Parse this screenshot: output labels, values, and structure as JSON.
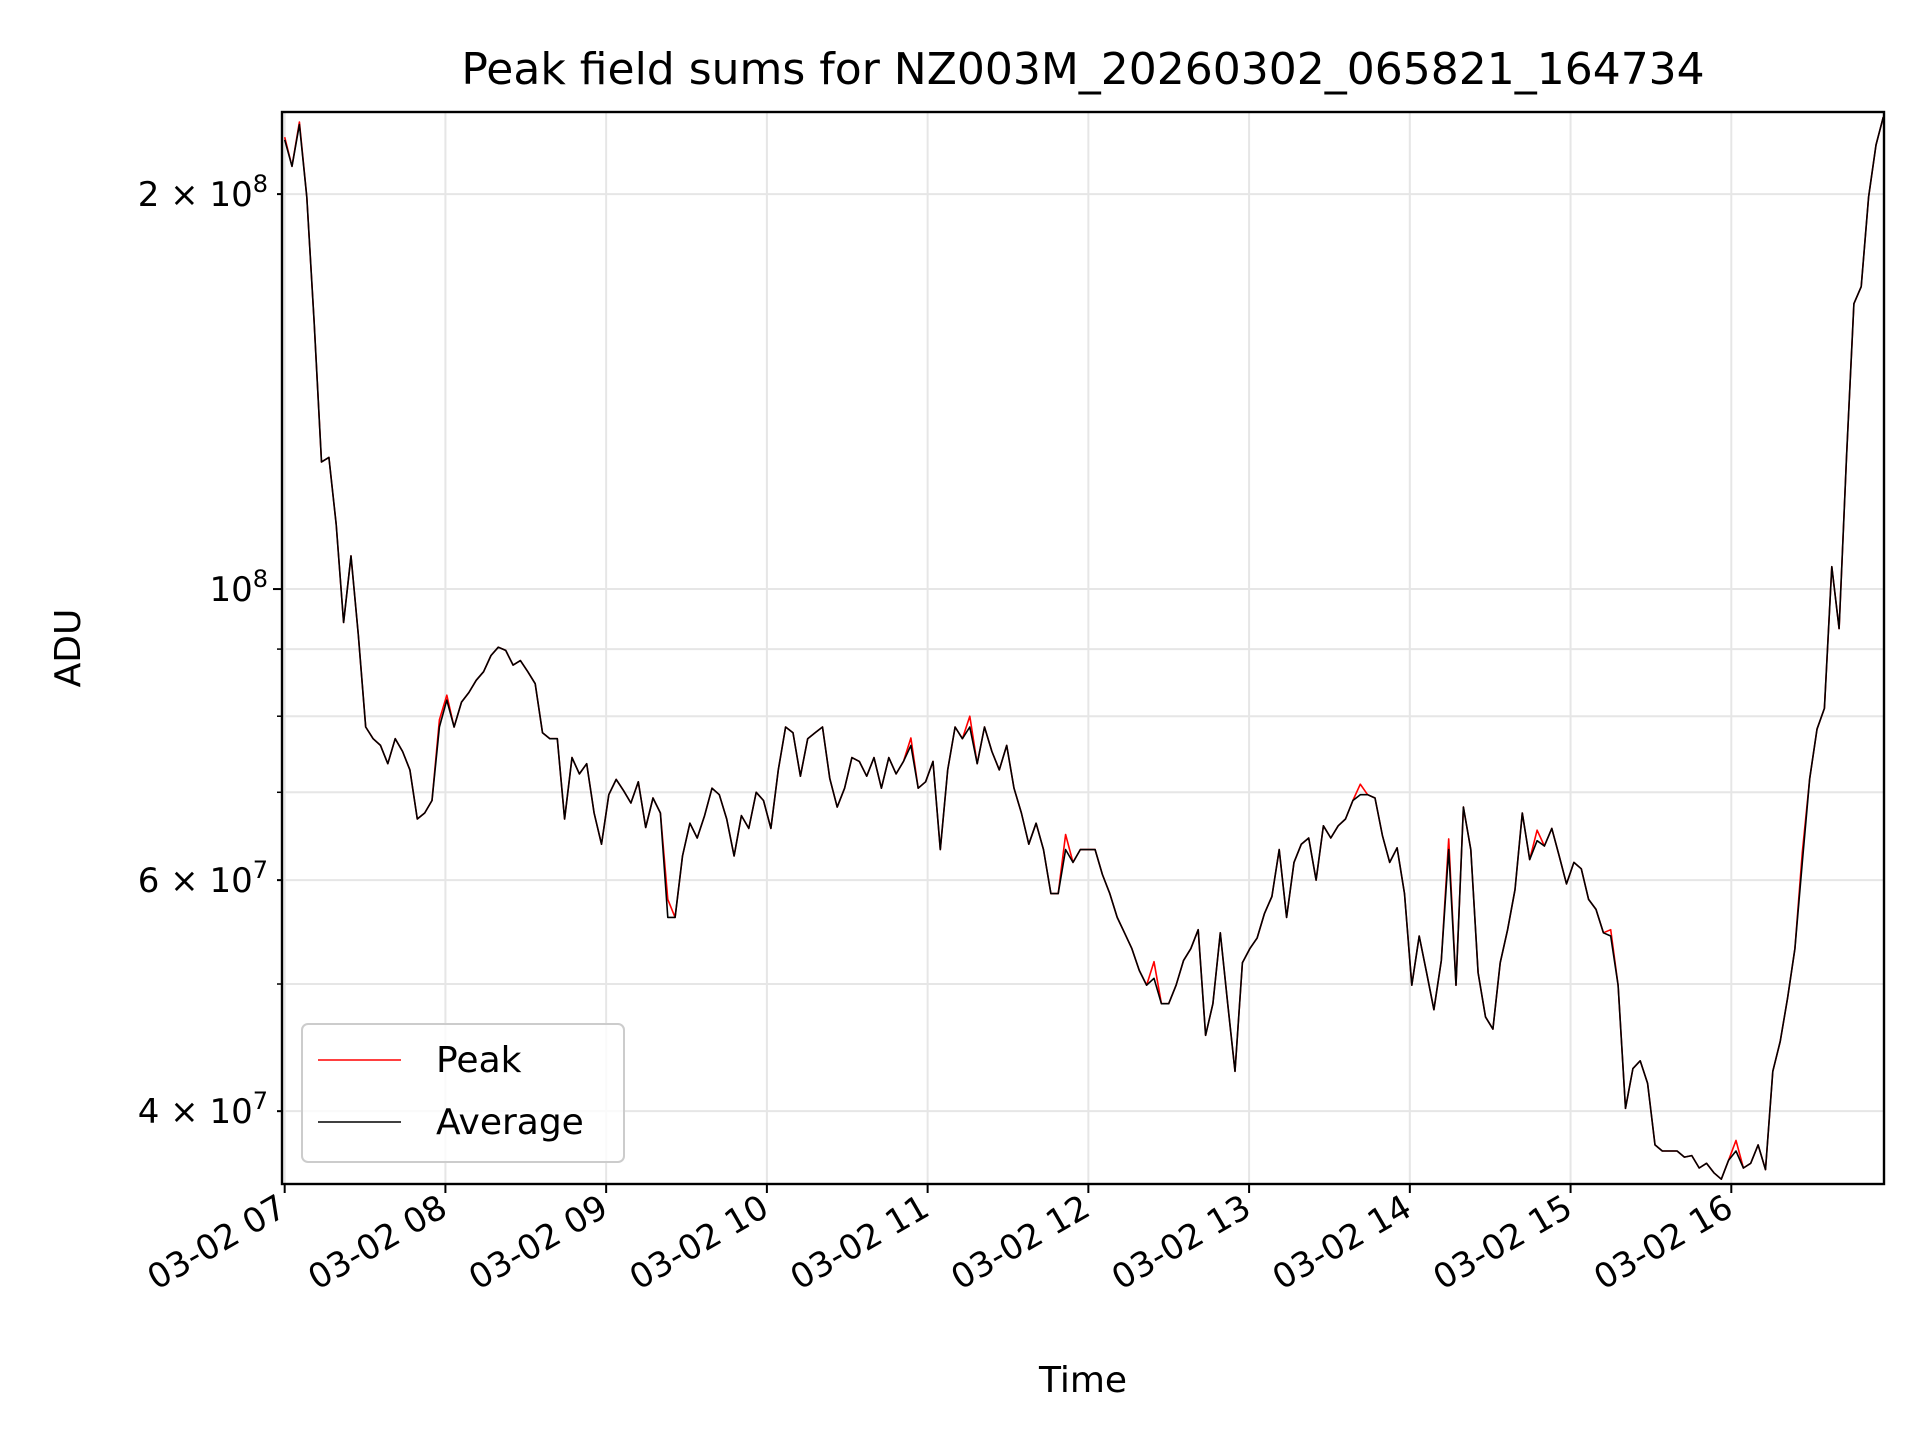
{
  "chart_data": {
    "type": "line",
    "title": "Peak field sums for NZ003M_20260302_065821_164734",
    "xlabel": "Time",
    "ylabel": "ADU",
    "yscale": "log",
    "ylim": [
      35200000,
      231000000
    ],
    "xlim_minutes_from_0700": [
      -1,
      597
    ],
    "x_start": "07:00",
    "x_step_minutes": 2.75,
    "grid": true,
    "legend_position": "lower-left",
    "x_ticks": [
      {
        "label": "03-02 07",
        "minutes": 0
      },
      {
        "label": "03-02 08",
        "minutes": 60
      },
      {
        "label": "03-02 09",
        "minutes": 120
      },
      {
        "label": "03-02 10",
        "minutes": 180
      },
      {
        "label": "03-02 11",
        "minutes": 240
      },
      {
        "label": "03-02 12",
        "minutes": 300
      },
      {
        "label": "03-02 13",
        "minutes": 360
      },
      {
        "label": "03-02 14",
        "minutes": 420
      },
      {
        "label": "03-02 15",
        "minutes": 480
      },
      {
        "label": "03-02 16",
        "minutes": 540
      }
    ],
    "y_ticks": [
      {
        "value": 40000000,
        "mantissa": "4",
        "exp": "7"
      },
      {
        "value": 60000000,
        "mantissa": "6",
        "exp": "7"
      },
      {
        "value": 100000000,
        "mantissa": "",
        "exp": "8"
      },
      {
        "value": 200000000,
        "mantissa": "2",
        "exp": "8"
      }
    ],
    "y_minor": [
      50000000,
      70000000,
      80000000,
      90000000
    ],
    "series": [
      {
        "name": "Peak",
        "color": "#ff0000",
        "values": [
          221000000.0,
          210000000.0,
          227000000.0,
          199000000.0,
          160000000.0,
          125000000.0,
          126000000.0,
          112000000.0,
          94300000.0,
          106000000.0,
          92300000.0,
          78500000.0,
          76900000.0,
          76000000.0,
          73600000.0,
          76900000.0,
          75200000.0,
          72800000.0,
          66800000.0,
          67500000.0,
          69000000.0,
          79500000.0,
          83000000.0,
          78500000.0,
          82000000.0,
          83400000.0,
          85200000.0,
          86500000.0,
          89000000.0,
          90300000.0,
          89800000.0,
          87500000.0,
          88200000.0,
          86500000.0,
          84700000.0,
          77700000.0,
          76900000.0,
          76900000.0,
          66800000.0,
          74400000.0,
          72300000.0,
          73600000.0,
          67500000.0,
          63900000.0,
          69700000.0,
          71600000.0,
          70200000.0,
          68700000.0,
          71300000.0,
          65800000.0,
          69300000.0,
          67500000.0,
          58000000.0,
          56200000.0,
          62600000.0,
          66300000.0,
          64600000.0,
          67200000.0,
          70500000.0,
          69700000.0,
          66800000.0,
          62600000.0,
          67200000.0,
          65700000.0,
          70000000.0,
          69000000.0,
          65700000.0,
          72800000.0,
          78500000.0,
          77700000.0,
          72000000.0,
          76900000.0,
          77700000.0,
          78500000.0,
          71700000.0,
          68200000.0,
          70500000.0,
          74400000.0,
          73900000.0,
          72000000.0,
          74400000.0,
          70500000.0,
          74400000.0,
          72300000.0,
          73900000.0,
          77000000.0,
          70500000.0,
          71300000.0,
          73900000.0,
          63300000.0,
          72800000.0,
          78500000.0,
          76900000.0,
          80000000.0,
          73600000.0,
          78500000.0,
          75200000.0,
          72800000.0,
          76000000.0,
          70500000.0,
          67500000.0,
          63900000.0,
          66300000.0,
          63300000.0,
          58600000.0,
          58600000.0,
          65000000.0,
          61900000.0,
          63300000.0,
          63300000.0,
          63300000.0,
          60600000.0,
          58600000.0,
          56200000.0,
          54700000.0,
          53200000.0,
          51200000.0,
          49900000.0,
          52000000.0,
          48300000.0,
          48300000.0,
          49900000.0,
          52100000.0,
          53200000.0,
          55000000.0,
          45700000.0,
          48300000.0,
          54700000.0,
          48300000.0,
          42900000.0,
          51900000.0,
          53200000.0,
          54200000.0,
          56600000.0,
          58300000.0,
          63300000.0,
          56200000.0,
          61900000.0,
          63900000.0,
          64600000.0,
          60000000.0,
          66000000.0,
          64600000.0,
          66000000.0,
          66800000.0,
          69000000.0,
          71000000.0,
          69700000.0,
          69300000.0,
          64900000.0,
          61900000.0,
          63500000.0,
          58600000.0,
          49900000.0,
          54400000.0,
          51000000.0,
          47800000.0,
          52100000.0,
          64500000.0,
          49900000.0,
          68200000.0,
          63300000.0,
          51000000.0,
          47200000.0,
          46200000.0,
          51900000.0,
          55000000.0,
          59000000.0,
          67500000.0,
          62200000.0,
          65500000.0,
          63700000.0,
          65700000.0,
          62600000.0,
          59600000.0,
          61900000.0,
          61200000.0,
          58000000.0,
          57000000.0,
          54700000.0,
          55000000.0,
          49900000.0,
          40200000.0,
          43100000.0,
          43700000.0,
          42000000.0,
          37700000.0,
          37300000.0,
          37300000.0,
          37300000.0,
          36900000.0,
          37000000.0,
          36200000.0,
          36500000.0,
          35900000.0,
          35500000.0,
          36700000.0,
          38000000.0,
          36200000.0,
          36500000.0,
          37700000.0,
          36100000.0,
          42900000.0,
          45200000.0,
          48800000.0,
          53200000.0,
          63000000.0,
          71700000.0,
          78200000.0,
          81100000.0,
          104000000.0,
          93300000.0,
          126000000.0,
          165000000.0,
          170000000.0,
          199000000.0,
          218000000.0,
          229000000.0
        ]
      },
      {
        "name": "Average",
        "color": "#000000",
        "values": [
          220000000.0,
          210000000.0,
          226000000.0,
          199000000.0,
          160000000.0,
          125000000.0,
          126000000.0,
          112000000.0,
          94300000.0,
          106000000.0,
          92300000.0,
          78500000.0,
          76900000.0,
          76000000.0,
          73600000.0,
          76900000.0,
          75200000.0,
          72800000.0,
          66800000.0,
          67500000.0,
          69000000.0,
          78500000.0,
          82300000.0,
          78500000.0,
          82000000.0,
          83400000.0,
          85200000.0,
          86500000.0,
          89000000.0,
          90300000.0,
          89800000.0,
          87500000.0,
          88200000.0,
          86500000.0,
          84700000.0,
          77700000.0,
          76900000.0,
          76900000.0,
          66800000.0,
          74400000.0,
          72300000.0,
          73600000.0,
          67500000.0,
          63900000.0,
          69700000.0,
          71600000.0,
          70200000.0,
          68700000.0,
          71300000.0,
          65800000.0,
          69300000.0,
          67500000.0,
          56200000.0,
          56200000.0,
          62600000.0,
          66300000.0,
          64600000.0,
          67200000.0,
          70500000.0,
          69700000.0,
          66800000.0,
          62600000.0,
          67200000.0,
          65700000.0,
          70000000.0,
          69000000.0,
          65700000.0,
          72800000.0,
          78500000.0,
          77700000.0,
          72000000.0,
          76900000.0,
          77700000.0,
          78500000.0,
          71700000.0,
          68200000.0,
          70500000.0,
          74400000.0,
          73900000.0,
          72000000.0,
          74400000.0,
          70500000.0,
          74400000.0,
          72300000.0,
          73900000.0,
          76000000.0,
          70500000.0,
          71300000.0,
          73900000.0,
          63300000.0,
          72800000.0,
          78500000.0,
          76900000.0,
          78500000.0,
          73600000.0,
          78500000.0,
          75200000.0,
          72800000.0,
          76000000.0,
          70500000.0,
          67500000.0,
          63900000.0,
          66300000.0,
          63300000.0,
          58600000.0,
          58600000.0,
          63300000.0,
          61900000.0,
          63300000.0,
          63300000.0,
          63300000.0,
          60600000.0,
          58600000.0,
          56200000.0,
          54700000.0,
          53200000.0,
          51200000.0,
          49900000.0,
          50500000.0,
          48300000.0,
          48300000.0,
          49900000.0,
          52100000.0,
          53200000.0,
          55000000.0,
          45700000.0,
          48300000.0,
          54700000.0,
          48300000.0,
          42900000.0,
          51900000.0,
          53200000.0,
          54200000.0,
          56600000.0,
          58300000.0,
          63300000.0,
          56200000.0,
          61900000.0,
          63900000.0,
          64600000.0,
          60000000.0,
          66000000.0,
          64600000.0,
          66000000.0,
          66800000.0,
          69000000.0,
          69700000.0,
          69700000.0,
          69300000.0,
          64900000.0,
          61900000.0,
          63500000.0,
          58600000.0,
          49900000.0,
          54400000.0,
          51000000.0,
          47800000.0,
          52100000.0,
          63300000.0,
          49900000.0,
          68200000.0,
          63300000.0,
          51000000.0,
          47200000.0,
          46200000.0,
          51900000.0,
          55000000.0,
          59000000.0,
          67500000.0,
          62200000.0,
          64300000.0,
          63700000.0,
          65700000.0,
          62600000.0,
          59600000.0,
          61900000.0,
          61200000.0,
          58000000.0,
          57000000.0,
          54700000.0,
          54400000.0,
          49900000.0,
          40200000.0,
          43100000.0,
          43700000.0,
          42000000.0,
          37700000.0,
          37300000.0,
          37300000.0,
          37300000.0,
          36900000.0,
          37000000.0,
          36200000.0,
          36500000.0,
          35900000.0,
          35500000.0,
          36700000.0,
          37300000.0,
          36200000.0,
          36500000.0,
          37700000.0,
          36100000.0,
          42900000.0,
          45200000.0,
          48800000.0,
          53200000.0,
          61900000.0,
          71700000.0,
          78200000.0,
          81100000.0,
          104000000.0,
          93300000.0,
          126000000.0,
          165000000.0,
          170000000.0,
          199000000.0,
          218000000.0,
          229000000.0
        ]
      }
    ]
  }
}
